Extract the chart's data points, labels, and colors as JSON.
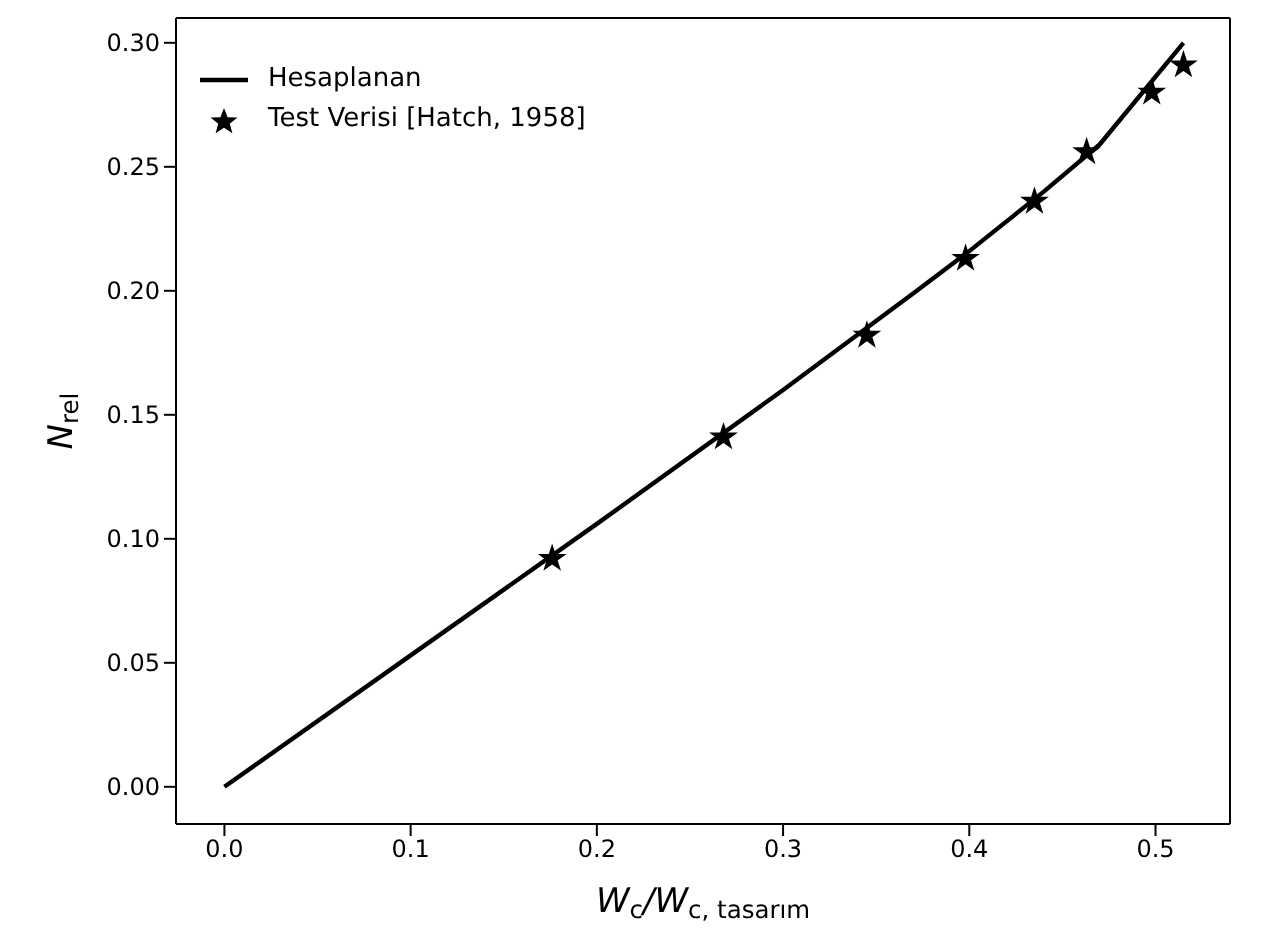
{
  "chart_data": {
    "type": "line",
    "xlabel": "W$_{c}$/W$_{c, tasarım}$",
    "ylabel": "N$_{rel}$",
    "xlim": [
      -0.026,
      0.54
    ],
    "ylim": [
      -0.015,
      0.31
    ],
    "xticks": [
      {
        "value": 0,
        "label": "0.0"
      },
      {
        "value": 0.1,
        "label": "0.1"
      },
      {
        "value": 0.2,
        "label": "0.2"
      },
      {
        "value": 0.3,
        "label": "0.3"
      },
      {
        "value": 0.4,
        "label": "0.4"
      },
      {
        "value": 0.5,
        "label": "0.5"
      }
    ],
    "yticks": [
      {
        "value": 0,
        "label": "0.00"
      },
      {
        "value": 0.05,
        "label": "0.05"
      },
      {
        "value": 0.1,
        "label": "0.10"
      },
      {
        "value": 0.15,
        "label": "0.15"
      },
      {
        "value": 0.2,
        "label": "0.20"
      },
      {
        "value": 0.25,
        "label": "0.25"
      },
      {
        "value": 0.3,
        "label": "0.30"
      }
    ],
    "grid": false,
    "legend": "top left",
    "series": [
      {
        "name": "Hesaplanan",
        "color": "#000000",
        "marker": "none",
        "line_style": "solid",
        "x": [
          0,
          0.1,
          0.2,
          0.3,
          0.37,
          0.4,
          0.44,
          0.47,
          0.515
        ],
        "values": [
          0,
          0.053,
          0.106,
          0.16,
          0.199,
          0.216,
          0.24,
          0.259,
          0.3
        ]
      },
      {
        "name": "Test Verisi [Hatch, 1958]",
        "type": "scatter",
        "color": "#000000",
        "marker": "star",
        "x": [
          0.176,
          0.268,
          0.345,
          0.398,
          0.435,
          0.463,
          0.498,
          0.515
        ],
        "values": [
          0.092,
          0.141,
          0.182,
          0.213,
          0.236,
          0.256,
          0.28,
          0.291
        ]
      }
    ]
  }
}
